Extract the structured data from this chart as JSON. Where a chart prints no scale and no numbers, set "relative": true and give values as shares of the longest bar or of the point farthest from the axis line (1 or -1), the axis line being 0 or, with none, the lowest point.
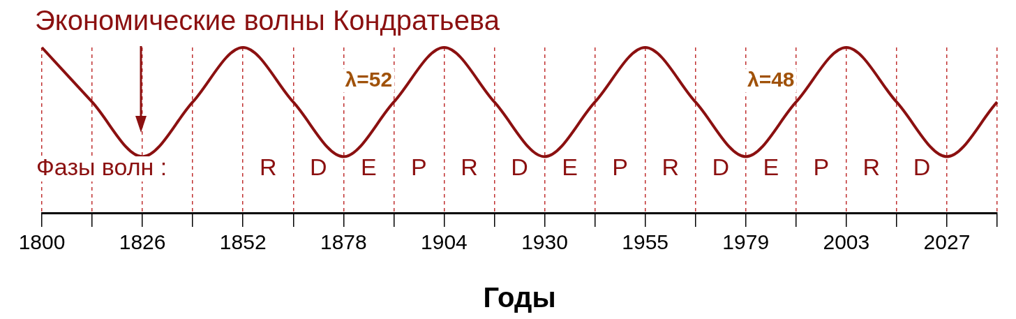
{
  "chart_data": {
    "type": "line",
    "title": "Экономические волны Кондратьева",
    "xlabel": "Годы",
    "categories": [
      "1800",
      null,
      "1826",
      null,
      "1852",
      null,
      "1878",
      null,
      "1904",
      null,
      "1930",
      null,
      "1955",
      null,
      "1979",
      null,
      "2003",
      null,
      "2027",
      null
    ],
    "relative": true,
    "series": [
      {
        "color": "#8b1010",
        "values": [
          1,
          0.67,
          0.34,
          0.67,
          1,
          0.67,
          0.34,
          0.67,
          1,
          0.67,
          0.34,
          0.67,
          1,
          0.67,
          0.34,
          0.67,
          1,
          0.67,
          0.34,
          0.67
        ]
      }
    ],
    "annotations": [
      "λ=52",
      "λ=48",
      "Фазы волн :",
      "R",
      "D",
      "E",
      "P",
      "R",
      "D",
      "E",
      "P",
      "R",
      "D",
      "E",
      "P",
      "R",
      "D"
    ],
    "grid": "x",
    "legend": false,
    "marker": "none",
    "line_style": "solid"
  }
}
